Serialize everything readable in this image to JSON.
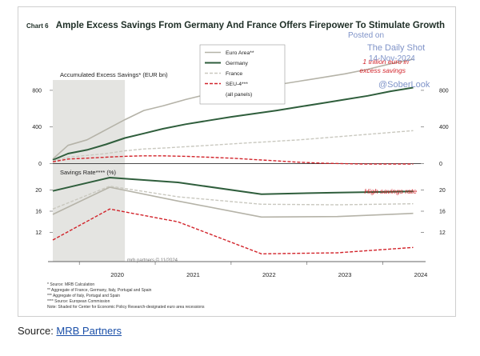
{
  "header": {
    "chart_number": "Chart 6",
    "title": "Ample Excess Savings From Germany And France Offers Firepower To Stimulate Growth"
  },
  "watermark": {
    "posted": "Posted on",
    "brand": "The Daily Shot",
    "date": "14-Nov-2024",
    "handle": "@SoberLook"
  },
  "annotations": {
    "top_line1": "1 trillion euro in",
    "top_line2": "excess savings",
    "bottom": "High savings rate"
  },
  "credit": "mrb partners © 11/2024",
  "footnotes": [
    "*   Source: MRB Calculation",
    "**  Aggregate of France, Germany, Italy, Portugal and Spain",
    "*** Aggregate of Italy, Portugal and Spain",
    "**** Source: European Commission",
    "Note: Shaded for Center for Economic Policy Research-designated euro area recessions"
  ],
  "source": {
    "label": "Source: ",
    "link_text": "MRB Partners"
  },
  "colors": {
    "euro_area": "#b5b3a8",
    "germany": "#2f5e3c",
    "france": "#c9c8bf",
    "seu4": "#d2232a",
    "recession": "#e4e4e1",
    "axis": "#555555"
  },
  "chart_data": {
    "type": "line",
    "x_ticks": [
      "2020",
      "2021",
      "2022",
      "2023",
      "2024"
    ],
    "recession": {
      "start": 2019.65,
      "end": 2020.6
    },
    "legend": {
      "position": "top-center",
      "entries": [
        "Euro Area**",
        "Germany",
        "France",
        "SEU-4***",
        "(all panels)"
      ]
    },
    "top_panel": {
      "title": "Accumulated Excess Savings* (EUR bn)",
      "ylim": [
        -30,
        1000
      ],
      "yticks": [
        0,
        400,
        800
      ],
      "x": [
        2019.65,
        2019.85,
        2020.1,
        2020.35,
        2020.6,
        2020.85,
        2021.1,
        2021.4,
        2021.7,
        2022.0,
        2022.3,
        2022.6,
        2022.9,
        2023.2,
        2023.5,
        2023.8,
        2024.1,
        2024.4
      ],
      "series": [
        {
          "name": "Euro Area**",
          "values": [
            50,
            200,
            260,
            370,
            480,
            580,
            630,
            700,
            760,
            790,
            830,
            860,
            900,
            940,
            980,
            1030,
            1090,
            1140
          ]
        },
        {
          "name": "Germany",
          "values": [
            40,
            110,
            150,
            210,
            280,
            330,
            380,
            430,
            470,
            510,
            545,
            580,
            620,
            660,
            700,
            740,
            790,
            830
          ]
        },
        {
          "name": "France",
          "values": [
            30,
            70,
            90,
            110,
            140,
            160,
            170,
            185,
            200,
            215,
            230,
            245,
            260,
            280,
            300,
            320,
            340,
            360
          ]
        },
        {
          "name": "SEU-4***",
          "values": [
            20,
            50,
            60,
            70,
            80,
            85,
            85,
            80,
            70,
            60,
            45,
            30,
            15,
            5,
            0,
            -5,
            -5,
            -5
          ]
        }
      ]
    },
    "bottom_panel": {
      "title": "Savings Rate**** (%)",
      "ylim": [
        7,
        22.6
      ],
      "yticks": [
        12,
        16,
        20
      ],
      "x": [
        2019.65,
        2020.4,
        2021.3,
        2022.4,
        2023.4,
        2024.4
      ],
      "series": [
        {
          "name": "Euro Area**",
          "values": [
            15.4,
            20.5,
            17.9,
            14.9,
            15.0,
            15.6
          ]
        },
        {
          "name": "Germany",
          "values": [
            19.8,
            22.3,
            21.4,
            19.2,
            19.5,
            19.7
          ]
        },
        {
          "name": "France",
          "values": [
            16.4,
            20.7,
            18.7,
            17.3,
            17.2,
            17.4
          ]
        },
        {
          "name": "SEU-4***",
          "values": [
            10.6,
            16.4,
            14.0,
            8.0,
            8.2,
            9.2
          ]
        }
      ]
    }
  }
}
